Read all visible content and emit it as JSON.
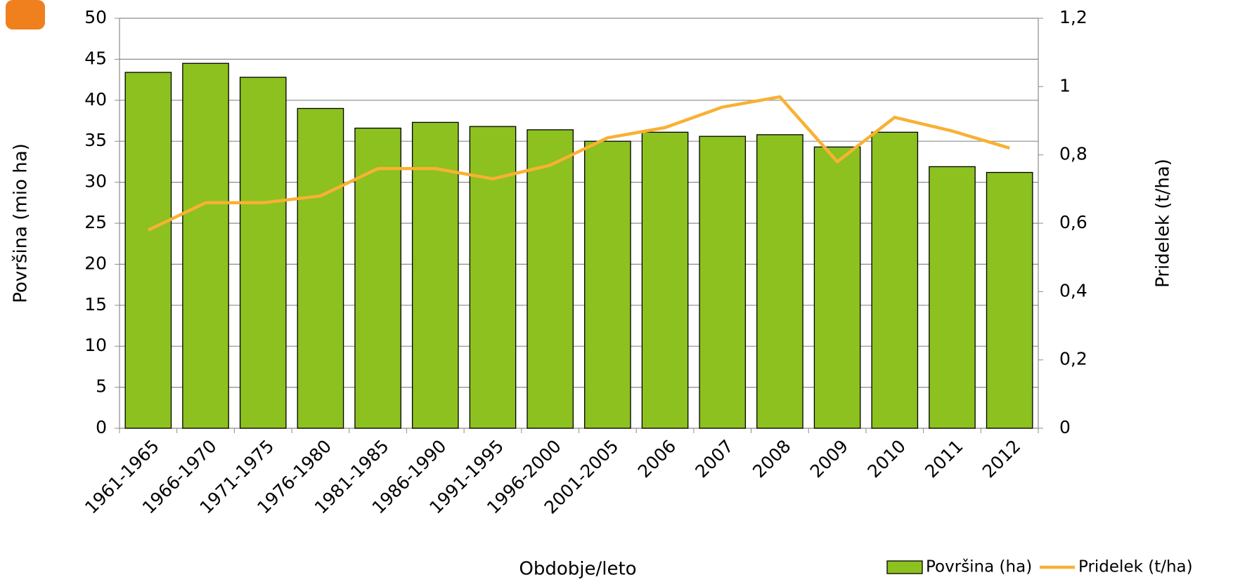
{
  "chart_data": {
    "type": "bar_line",
    "xlabel": "Obdobje/leto",
    "ylabel": "Površina (mio ha)",
    "y2label": "Pridelek (t/ha)",
    "categories": [
      "1961-1965",
      "1966-1970",
      "1971-1975",
      "1976-1980",
      "1981-1985",
      "1986-1990",
      "1991-1995",
      "1996-2000",
      "2001-2005",
      "2006",
      "2007",
      "2008",
      "2009",
      "2010",
      "2011",
      "2012"
    ],
    "series": [
      {
        "name": "Površina (ha)",
        "type": "bar",
        "color": "#8cc11f",
        "values": [
          43.4,
          44.5,
          42.8,
          39.0,
          36.6,
          37.3,
          36.8,
          36.4,
          35.0,
          36.1,
          35.6,
          35.8,
          34.3,
          36.1,
          31.9,
          31.2
        ]
      },
      {
        "name": "Pridelek (t/ha)",
        "type": "line",
        "axis": "y2",
        "color": "#f8b133",
        "values": [
          0.58,
          0.66,
          0.66,
          0.68,
          0.76,
          0.76,
          0.73,
          0.77,
          0.85,
          0.88,
          0.94,
          0.97,
          0.78,
          0.91,
          0.87,
          0.82
        ]
      }
    ],
    "ylim": [
      0,
      50
    ],
    "yticks": [
      0,
      5,
      10,
      15,
      20,
      25,
      30,
      35,
      40,
      45,
      50
    ],
    "y2lim": [
      0,
      1.2
    ],
    "y2ticks": [
      0,
      {
        "value": 0.2,
        "label": "0,2"
      },
      {
        "value": 0.4,
        "label": "0,4"
      },
      {
        "value": 0.6,
        "label": "0,6"
      },
      {
        "value": 0.8,
        "label": "0,8"
      },
      1,
      {
        "value": 1.2,
        "label": "1,2"
      }
    ],
    "grid": true,
    "legend": "bottom-right"
  }
}
